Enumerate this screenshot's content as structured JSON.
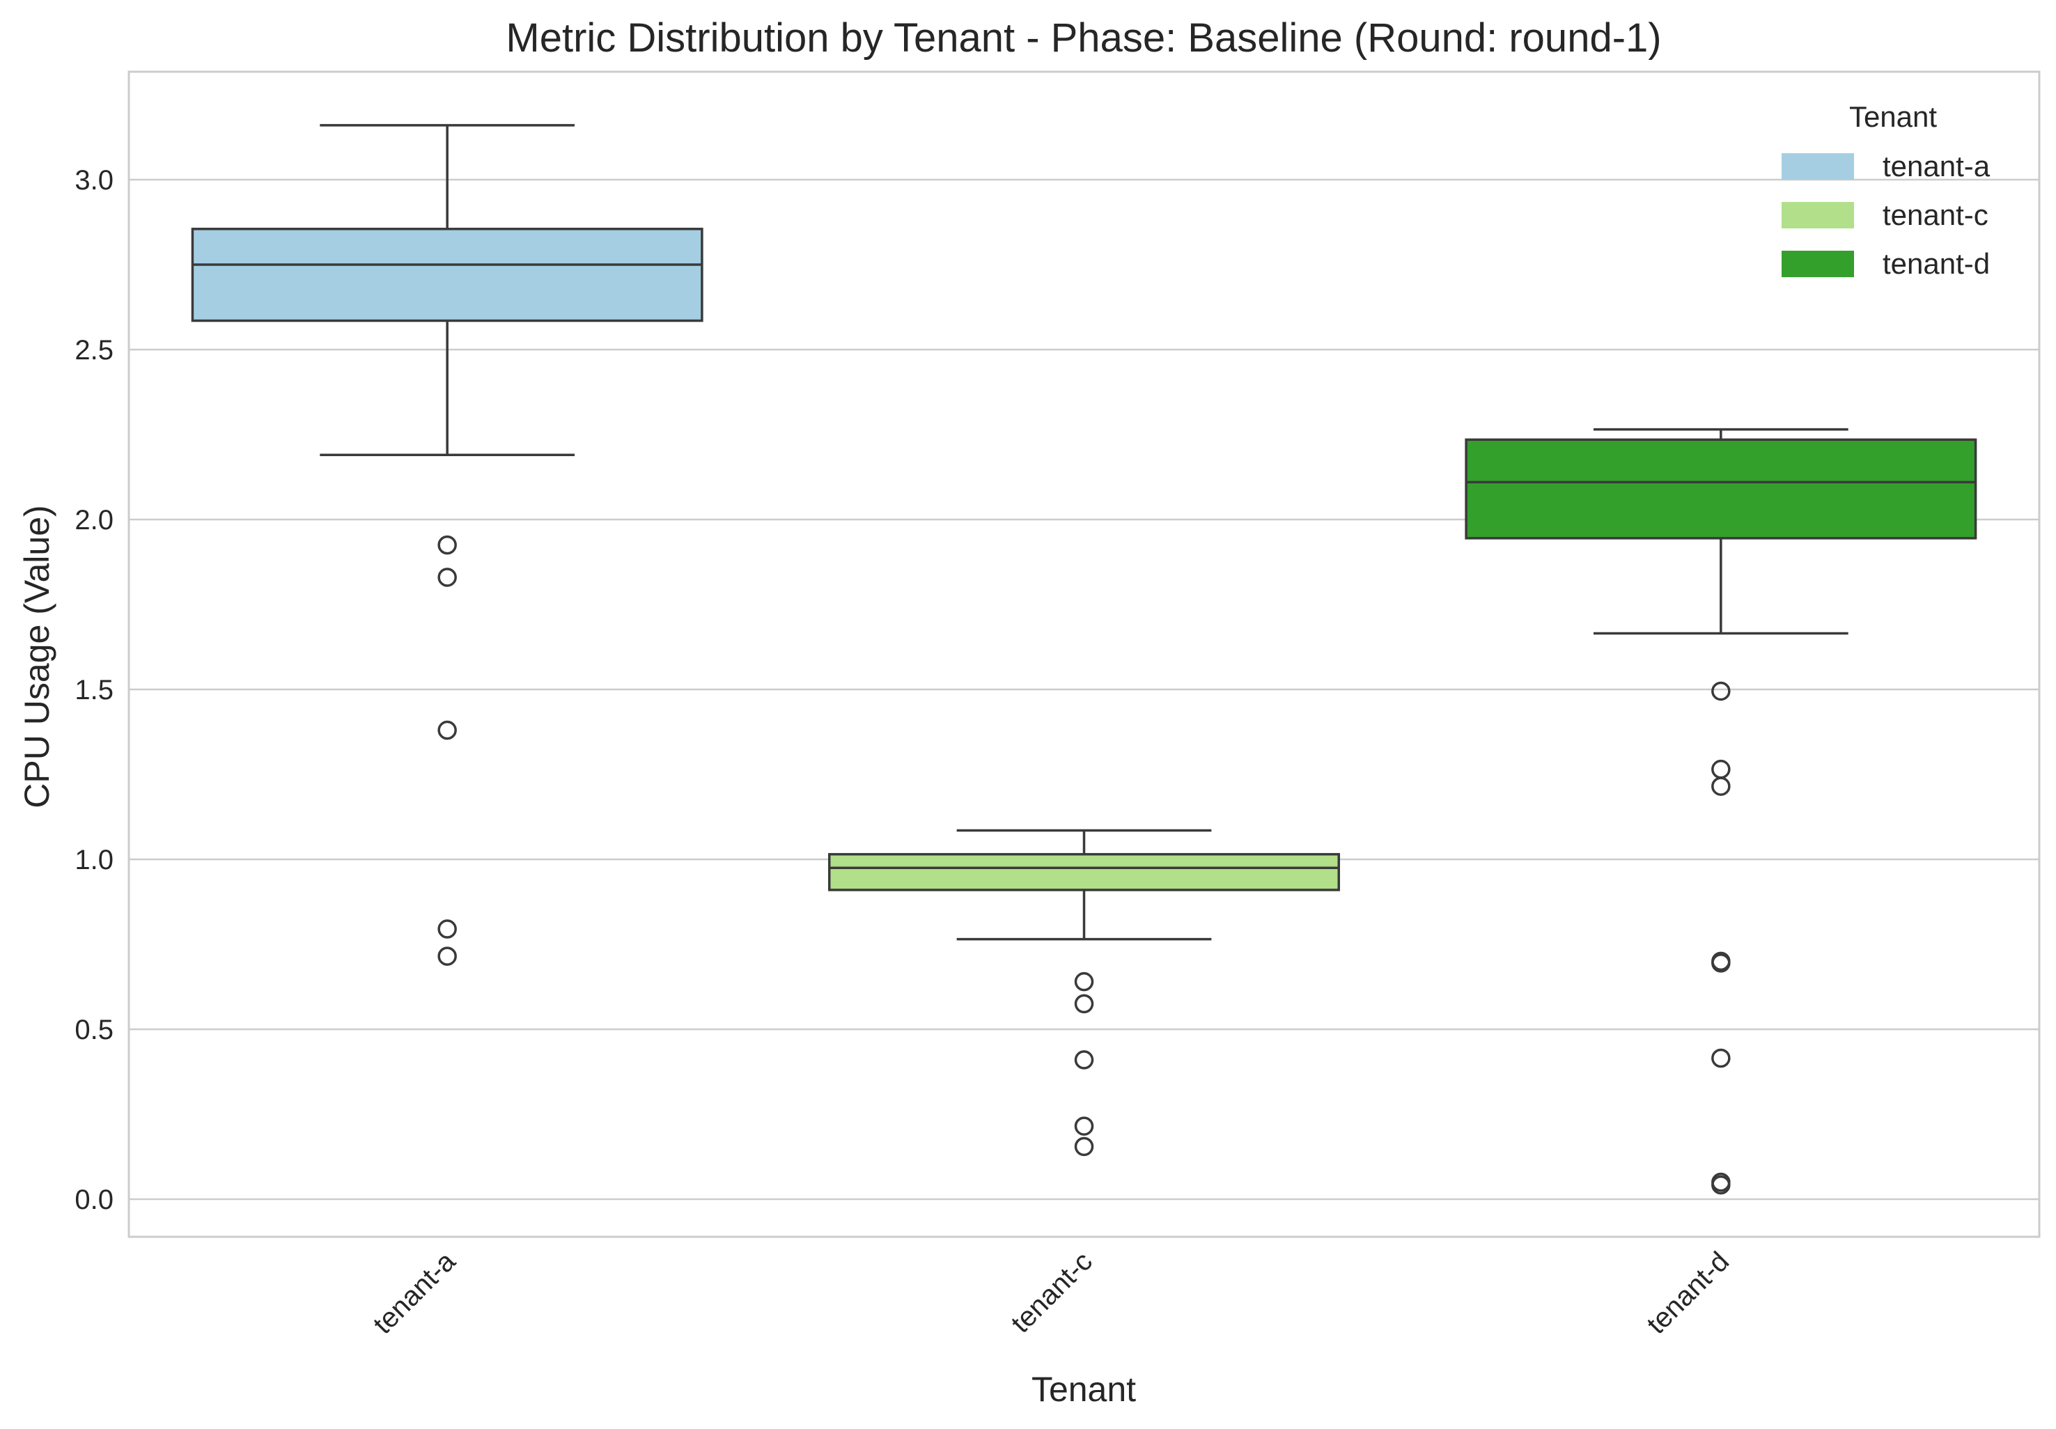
{
  "chart_data": {
    "type": "box",
    "title": "Metric Distribution by Tenant - Phase: Baseline (Round: round-1)",
    "xlabel": "Tenant",
    "ylabel": "CPU Usage (Value)",
    "ylim": [
      -0.12,
      3.3
    ],
    "yticks": [
      "0.0",
      "0.5",
      "1.0",
      "1.5",
      "2.0",
      "2.5",
      "3.0"
    ],
    "ytick_values": [
      0.0,
      0.5,
      1.0,
      1.5,
      2.0,
      2.5,
      3.0
    ],
    "grid": true,
    "legend": {
      "title": "Tenant",
      "placement": "top-right",
      "entries": [
        "tenant-a",
        "tenant-c",
        "tenant-d"
      ]
    },
    "categories": [
      "tenant-a",
      "tenant-c",
      "tenant-d"
    ],
    "series": [
      {
        "name": "tenant-a",
        "color": "#a6cee3",
        "whisker_low": 2.19,
        "q1": 2.585,
        "median": 2.75,
        "q3": 2.855,
        "whisker_high": 3.16,
        "outliers": [
          1.925,
          1.83,
          1.38,
          0.795,
          0.715
        ]
      },
      {
        "name": "tenant-c",
        "color": "#b2df8a",
        "whisker_low": 0.765,
        "q1": 0.91,
        "median": 0.975,
        "q3": 1.015,
        "whisker_high": 1.085,
        "outliers": [
          0.64,
          0.575,
          0.41,
          0.215,
          0.155
        ]
      },
      {
        "name": "tenant-d",
        "color": "#33a02c",
        "whisker_low": 1.665,
        "q1": 1.945,
        "median": 2.11,
        "q3": 2.235,
        "whisker_high": 2.265,
        "outliers": [
          1.495,
          1.265,
          1.215,
          0.7,
          0.695,
          0.415,
          0.05,
          0.042
        ]
      }
    ]
  }
}
